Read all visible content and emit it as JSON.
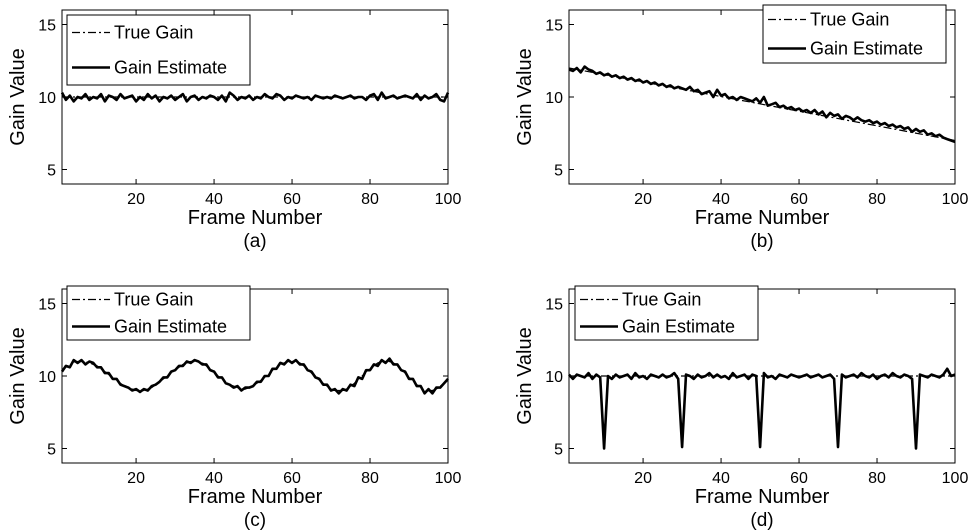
{
  "chart_data": [
    {
      "type": "line",
      "subfigure_label": "(a)",
      "xlabel": "Frame Number",
      "ylabel": "Gain Value",
      "xlim": [
        1,
        100
      ],
      "ylim": [
        4,
        16
      ],
      "xticks": [
        20,
        40,
        60,
        80,
        100
      ],
      "yticks": [
        5,
        10,
        15
      ],
      "grid": false,
      "legend": "top-left",
      "series": [
        {
          "name": "True Gain",
          "style": "dash-dot",
          "color": "#000000",
          "x": [
            1,
            100
          ],
          "y": [
            10,
            10
          ]
        },
        {
          "name": "Gain Estimate",
          "style": "solid",
          "color": "#000000",
          "y": [
            10.3,
            9.8,
            10.1,
            9.7,
            10.0,
            9.9,
            10.2,
            9.8,
            10.0,
            9.9,
            10.2,
            9.7,
            10.1,
            10.0,
            9.8,
            10.2,
            9.9,
            10.0,
            10.1,
            9.7,
            10.0,
            9.8,
            10.2,
            9.9,
            10.1,
            9.7,
            10.0,
            9.9,
            10.1,
            9.8,
            10.0,
            10.2,
            9.7,
            10.0,
            10.1,
            9.8,
            10.0,
            9.9,
            10.1,
            10.0,
            9.8,
            10.1,
            9.7,
            10.3,
            10.1,
            9.8,
            10.0,
            9.9,
            10.1,
            9.8,
            10.0,
            9.9,
            10.2,
            10.0,
            9.9,
            10.2,
            10.1,
            9.8,
            10.0,
            9.9,
            10.1,
            10.0,
            9.9,
            10.0,
            9.8,
            10.1,
            10.0,
            9.9,
            10.0,
            9.9,
            10.1,
            10.0,
            9.9,
            10.0,
            10.1,
            9.9,
            10.0,
            10.0,
            9.8,
            10.1,
            10.2,
            9.8,
            10.3,
            9.9,
            10.0,
            10.1,
            9.9,
            10.0,
            10.1,
            10.0,
            9.9,
            10.2,
            9.8,
            10.1,
            9.9,
            10.0,
            10.2,
            9.8,
            9.7,
            10.3
          ]
        }
      ]
    },
    {
      "type": "line",
      "subfigure_label": "(b)",
      "xlabel": "Frame Number",
      "ylabel": "Gain Value",
      "xlim": [
        1,
        100
      ],
      "ylim": [
        4,
        16
      ],
      "xticks": [
        20,
        40,
        60,
        80,
        100
      ],
      "yticks": [
        5,
        10,
        15
      ],
      "grid": false,
      "legend": "top-right",
      "series": [
        {
          "name": "True Gain",
          "style": "dash-dot",
          "color": "#000000",
          "x": [
            1,
            100
          ],
          "y": [
            12,
            7
          ]
        },
        {
          "name": "Gain Estimate",
          "style": "solid",
          "color": "#000000",
          "y": [
            11.9,
            11.8,
            12.0,
            11.7,
            12.1,
            11.9,
            11.8,
            11.6,
            11.7,
            11.5,
            11.6,
            11.4,
            11.5,
            11.3,
            11.4,
            11.2,
            11.3,
            11.1,
            11.2,
            11.0,
            11.1,
            10.9,
            11.0,
            10.8,
            10.9,
            10.7,
            10.8,
            10.6,
            10.7,
            10.6,
            10.5,
            10.7,
            10.4,
            10.5,
            10.2,
            10.3,
            10.4,
            10.0,
            10.5,
            10.1,
            10.2,
            9.9,
            10.0,
            9.8,
            10.0,
            9.9,
            9.8,
            9.7,
            9.9,
            9.6,
            10.0,
            9.4,
            9.5,
            9.6,
            9.3,
            9.4,
            9.2,
            9.3,
            9.1,
            9.2,
            9.0,
            9.1,
            8.9,
            9.1,
            8.8,
            9.0,
            8.6,
            8.9,
            8.7,
            8.8,
            8.5,
            8.7,
            8.6,
            8.4,
            8.6,
            8.4,
            8.3,
            8.4,
            8.2,
            8.3,
            8.1,
            8.2,
            8.0,
            8.1,
            7.9,
            8.0,
            7.8,
            7.9,
            7.6,
            7.8,
            7.6,
            7.7,
            7.4,
            7.5,
            7.3,
            7.4,
            7.2,
            7.1,
            7.0,
            6.9
          ]
        }
      ]
    },
    {
      "type": "line",
      "subfigure_label": "(c)",
      "xlabel": "Frame Number",
      "ylabel": "Gain Value",
      "xlim": [
        1,
        100
      ],
      "ylim": [
        4,
        16
      ],
      "xticks": [
        20,
        40,
        60,
        80,
        100
      ],
      "yticks": [
        5,
        10,
        15
      ],
      "grid": false,
      "legend": "top-left",
      "series": [
        {
          "name": "True Gain",
          "style": "dash-dot",
          "color": "#000000",
          "y": [
            10.4,
            10.6,
            10.8,
            10.9,
            11.0,
            11.0,
            11.0,
            10.9,
            10.8,
            10.7,
            10.5,
            10.3,
            10.1,
            9.9,
            9.7,
            9.5,
            9.3,
            9.2,
            9.1,
            9.0,
            9.0,
            9.0,
            9.1,
            9.2,
            9.4,
            9.6,
            9.8,
            10.0,
            10.2,
            10.4,
            10.6,
            10.8,
            10.9,
            11.0,
            11.0,
            11.0,
            10.9,
            10.7,
            10.5,
            10.3,
            10.0,
            9.8,
            9.6,
            9.4,
            9.3,
            9.2,
            9.1,
            9.1,
            9.2,
            9.3,
            9.5,
            9.7,
            9.9,
            10.1,
            10.4,
            10.6,
            10.8,
            10.9,
            11.0,
            11.0,
            11.0,
            10.9,
            10.7,
            10.5,
            10.2,
            10.0,
            9.7,
            9.5,
            9.3,
            9.1,
            9.0,
            9.0,
            9.0,
            9.1,
            9.3,
            9.5,
            9.8,
            10.0,
            10.3,
            10.5,
            10.7,
            10.9,
            11.0,
            11.0,
            11.0,
            10.9,
            10.7,
            10.5,
            10.2,
            9.9,
            9.7,
            9.4,
            9.2,
            9.0,
            9.0,
            9.0,
            9.1,
            9.3,
            9.5,
            9.8
          ]
        },
        {
          "name": "Gain Estimate",
          "style": "solid",
          "color": "#000000",
          "y": [
            10.3,
            10.7,
            10.6,
            11.1,
            10.9,
            11.1,
            10.8,
            11.0,
            10.9,
            10.6,
            10.6,
            10.2,
            10.2,
            9.8,
            9.8,
            9.4,
            9.3,
            9.2,
            9.0,
            9.1,
            8.9,
            9.1,
            9.0,
            9.3,
            9.4,
            9.6,
            9.9,
            9.9,
            10.3,
            10.4,
            10.7,
            10.7,
            11.0,
            10.9,
            11.1,
            11.0,
            10.8,
            10.8,
            10.4,
            10.3,
            9.9,
            9.9,
            9.5,
            9.4,
            9.2,
            9.3,
            9.0,
            9.2,
            9.2,
            9.3,
            9.6,
            9.6,
            10.0,
            10.0,
            10.5,
            10.5,
            10.9,
            10.8,
            11.1,
            10.9,
            11.1,
            10.8,
            10.8,
            10.4,
            10.3,
            9.9,
            9.8,
            9.4,
            9.4,
            9.0,
            9.1,
            8.8,
            9.1,
            9.0,
            9.4,
            9.3,
            9.9,
            9.8,
            10.4,
            10.4,
            10.8,
            10.7,
            11.1,
            10.9,
            11.2,
            10.8,
            10.8,
            10.4,
            10.3,
            9.8,
            9.8,
            9.3,
            9.3,
            8.8,
            9.1,
            8.8,
            9.2,
            9.2,
            9.5,
            9.8
          ]
        }
      ]
    },
    {
      "type": "line",
      "subfigure_label": "(d)",
      "xlabel": "Frame Number",
      "ylabel": "Gain Value",
      "xlim": [
        1,
        100
      ],
      "ylim": [
        4,
        16
      ],
      "xticks": [
        20,
        40,
        60,
        80,
        100
      ],
      "yticks": [
        5,
        10,
        15
      ],
      "grid": false,
      "legend": "top-left",
      "series": [
        {
          "name": "True Gain",
          "style": "dash-dot",
          "color": "#000000",
          "x": [
            1,
            100
          ],
          "y": [
            10,
            10
          ]
        },
        {
          "name": "Gain Estimate",
          "style": "solid",
          "color": "#000000",
          "y": [
            10.1,
            9.8,
            10.1,
            10.0,
            9.9,
            10.2,
            9.8,
            10.1,
            9.9,
            5.0,
            10.0,
            9.8,
            10.1,
            9.9,
            10.0,
            10.1,
            9.8,
            10.2,
            9.9,
            10.0,
            9.8,
            10.1,
            10.0,
            9.9,
            10.1,
            9.9,
            10.0,
            10.2,
            9.8,
            5.1,
            10.1,
            10.0,
            9.8,
            10.1,
            9.9,
            10.0,
            10.2,
            9.9,
            10.1,
            9.9,
            10.0,
            9.8,
            10.2,
            9.9,
            10.0,
            10.1,
            9.8,
            10.1,
            10.0,
            5.1,
            10.2,
            9.9,
            10.0,
            9.8,
            10.1,
            10.0,
            9.9,
            10.1,
            10.0,
            9.9,
            10.0,
            10.1,
            9.9,
            10.0,
            10.1,
            9.9,
            10.0,
            10.1,
            9.8,
            5.1,
            10.1,
            9.9,
            10.0,
            10.1,
            9.9,
            10.2,
            10.0,
            9.9,
            10.1,
            9.8,
            10.0,
            10.1,
            9.9,
            10.2,
            10.0,
            9.9,
            10.1,
            10.0,
            9.8,
            5.0,
            10.1,
            10.0,
            9.9,
            10.1,
            10.0,
            9.9,
            10.1,
            10.5,
            10.0,
            10.1
          ]
        }
      ]
    }
  ]
}
